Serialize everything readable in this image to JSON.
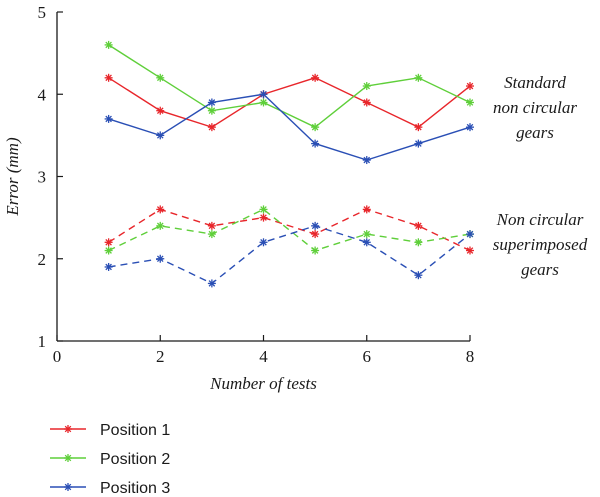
{
  "chart_data": {
    "type": "line",
    "title": "",
    "xlabel": "Number of tests",
    "ylabel": "Error (mm)",
    "xlim": [
      0,
      8
    ],
    "ylim": [
      1,
      5
    ],
    "xticks": [
      0,
      2,
      4,
      6,
      8
    ],
    "yticks": [
      1,
      2,
      3,
      4,
      5
    ],
    "grid": false,
    "legend_position": "bottom-left",
    "x": [
      1,
      2,
      3,
      4,
      5,
      6,
      7,
      8
    ],
    "groups": [
      {
        "label_lines": [
          "Standard",
          "non circular",
          "gears"
        ],
        "line_style": "solid",
        "series": [
          {
            "name": "Position 1",
            "color": "#e8262b",
            "values": [
              4.2,
              3.8,
              3.6,
              4.0,
              4.2,
              3.9,
              3.6,
              4.1
            ]
          },
          {
            "name": "Position 2",
            "color": "#5fcf3a",
            "values": [
              4.6,
              4.2,
              3.8,
              3.9,
              3.6,
              4.1,
              4.2,
              3.9
            ]
          },
          {
            "name": "Position 3",
            "color": "#2a4fb5",
            "values": [
              3.7,
              3.5,
              3.9,
              4.0,
              3.4,
              3.2,
              3.4,
              3.6
            ]
          }
        ]
      },
      {
        "label_lines": [
          "Non circular",
          "superimposed",
          "gears"
        ],
        "line_style": "dashed",
        "series": [
          {
            "name": "Position 1",
            "color": "#e8262b",
            "values": [
              2.2,
              2.6,
              2.4,
              2.5,
              2.3,
              2.6,
              2.4,
              2.1
            ]
          },
          {
            "name": "Position 2",
            "color": "#5fcf3a",
            "values": [
              2.1,
              2.4,
              2.3,
              2.6,
              2.1,
              2.3,
              2.2,
              2.3
            ]
          },
          {
            "name": "Position 3",
            "color": "#2a4fb5",
            "values": [
              1.9,
              2.0,
              1.7,
              2.2,
              2.4,
              2.2,
              1.8,
              2.3
            ]
          }
        ]
      }
    ],
    "legend": [
      {
        "label": "Position 1",
        "color": "#e8262b"
      },
      {
        "label": "Position 2",
        "color": "#5fcf3a"
      },
      {
        "label": "Position 3",
        "color": "#2a4fb5"
      }
    ]
  }
}
